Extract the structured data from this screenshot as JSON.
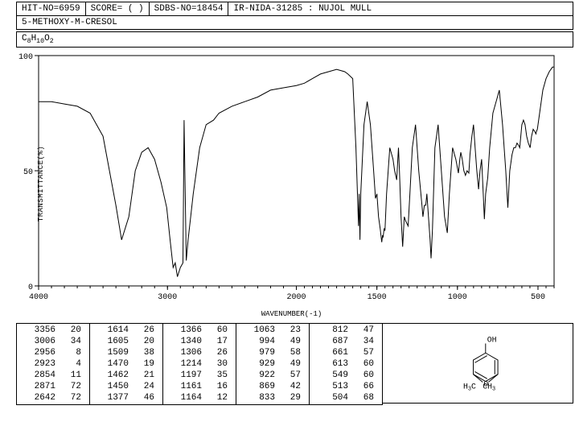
{
  "header": {
    "hit_no": "HIT-NO=6959",
    "score": "SCORE=  (  )",
    "sdbs": "SDBS-NO=18454",
    "ir": "IR-NIDA-31285 : NUJOL MULL"
  },
  "compound": "5-METHOXY-M-CRESOL",
  "formula": {
    "c": "8",
    "h": "10",
    "o": "2"
  },
  "chart": {
    "type": "line",
    "xlabel": "WAVENUMBER(-1)",
    "ylabel": "TRANSMITTANCE(%)",
    "xlim": [
      4000,
      400
    ],
    "ylim": [
      0,
      100
    ],
    "xticks": [
      4000,
      3000,
      2000,
      1500,
      1000,
      500
    ],
    "yticks": [
      0,
      50,
      100
    ],
    "line_color": "#000000",
    "background_color": "#ffffff",
    "axis_color": "#000000",
    "spectrum": [
      [
        4000,
        80
      ],
      [
        3900,
        80
      ],
      [
        3800,
        79
      ],
      [
        3700,
        78
      ],
      [
        3600,
        75
      ],
      [
        3500,
        65
      ],
      [
        3400,
        35
      ],
      [
        3356,
        20
      ],
      [
        3300,
        30
      ],
      [
        3250,
        50
      ],
      [
        3200,
        58
      ],
      [
        3150,
        60
      ],
      [
        3100,
        55
      ],
      [
        3050,
        45
      ],
      [
        3006,
        34
      ],
      [
        2980,
        20
      ],
      [
        2956,
        8
      ],
      [
        2940,
        10
      ],
      [
        2923,
        4
      ],
      [
        2900,
        8
      ],
      [
        2880,
        10
      ],
      [
        2871,
        72
      ],
      [
        2854,
        11
      ],
      [
        2840,
        20
      ],
      [
        2800,
        40
      ],
      [
        2750,
        60
      ],
      [
        2700,
        70
      ],
      [
        2642,
        72
      ],
      [
        2600,
        75
      ],
      [
        2500,
        78
      ],
      [
        2400,
        80
      ],
      [
        2300,
        82
      ],
      [
        2200,
        85
      ],
      [
        2100,
        86
      ],
      [
        2000,
        87
      ],
      [
        1950,
        88
      ],
      [
        1900,
        90
      ],
      [
        1850,
        92
      ],
      [
        1800,
        93
      ],
      [
        1750,
        94
      ],
      [
        1700,
        93
      ],
      [
        1680,
        92
      ],
      [
        1650,
        90
      ],
      [
        1630,
        60
      ],
      [
        1614,
        26
      ],
      [
        1610,
        40
      ],
      [
        1605,
        20
      ],
      [
        1600,
        40
      ],
      [
        1580,
        70
      ],
      [
        1560,
        80
      ],
      [
        1540,
        70
      ],
      [
        1520,
        50
      ],
      [
        1509,
        38
      ],
      [
        1500,
        40
      ],
      [
        1490,
        30
      ],
      [
        1480,
        25
      ],
      [
        1470,
        19
      ],
      [
        1465,
        22
      ],
      [
        1462,
        21
      ],
      [
        1455,
        25
      ],
      [
        1450,
        24
      ],
      [
        1440,
        40
      ],
      [
        1420,
        60
      ],
      [
        1400,
        55
      ],
      [
        1390,
        50
      ],
      [
        1377,
        46
      ],
      [
        1370,
        55
      ],
      [
        1366,
        60
      ],
      [
        1360,
        50
      ],
      [
        1350,
        30
      ],
      [
        1340,
        17
      ],
      [
        1330,
        30
      ],
      [
        1320,
        28
      ],
      [
        1306,
        26
      ],
      [
        1295,
        40
      ],
      [
        1280,
        60
      ],
      [
        1260,
        70
      ],
      [
        1240,
        50
      ],
      [
        1220,
        35
      ],
      [
        1214,
        30
      ],
      [
        1205,
        35
      ],
      [
        1197,
        35
      ],
      [
        1190,
        40
      ],
      [
        1180,
        30
      ],
      [
        1170,
        20
      ],
      [
        1164,
        12
      ],
      [
        1161,
        16
      ],
      [
        1155,
        25
      ],
      [
        1140,
        60
      ],
      [
        1120,
        70
      ],
      [
        1100,
        50
      ],
      [
        1080,
        30
      ],
      [
        1063,
        23
      ],
      [
        1050,
        40
      ],
      [
        1030,
        60
      ],
      [
        1010,
        55
      ],
      [
        994,
        49
      ],
      [
        985,
        55
      ],
      [
        979,
        58
      ],
      [
        970,
        55
      ],
      [
        960,
        50
      ],
      [
        950,
        48
      ],
      [
        940,
        50
      ],
      [
        929,
        49
      ],
      [
        922,
        57
      ],
      [
        910,
        65
      ],
      [
        900,
        70
      ],
      [
        890,
        60
      ],
      [
        880,
        50
      ],
      [
        869,
        42
      ],
      [
        860,
        50
      ],
      [
        850,
        55
      ],
      [
        840,
        40
      ],
      [
        833,
        29
      ],
      [
        825,
        40
      ],
      [
        812,
        47
      ],
      [
        800,
        60
      ],
      [
        780,
        75
      ],
      [
        760,
        80
      ],
      [
        740,
        85
      ],
      [
        720,
        70
      ],
      [
        700,
        50
      ],
      [
        687,
        34
      ],
      [
        675,
        50
      ],
      [
        661,
        57
      ],
      [
        650,
        60
      ],
      [
        640,
        60
      ],
      [
        630,
        62
      ],
      [
        620,
        61
      ],
      [
        613,
        60
      ],
      [
        600,
        70
      ],
      [
        590,
        72
      ],
      [
        580,
        70
      ],
      [
        570,
        65
      ],
      [
        560,
        62
      ],
      [
        549,
        60
      ],
      [
        540,
        65
      ],
      [
        530,
        68
      ],
      [
        520,
        67
      ],
      [
        513,
        66
      ],
      [
        510,
        67
      ],
      [
        504,
        68
      ],
      [
        490,
        75
      ],
      [
        470,
        85
      ],
      [
        450,
        90
      ],
      [
        430,
        93
      ],
      [
        410,
        95
      ],
      [
        400,
        95
      ]
    ]
  },
  "peak_table": {
    "columns": 5,
    "rows_per_col": 7,
    "data": [
      [
        3356,
        20
      ],
      [
        3006,
        34
      ],
      [
        2956,
        8
      ],
      [
        2923,
        4
      ],
      [
        2854,
        11
      ],
      [
        2871,
        72
      ],
      [
        2642,
        72
      ],
      [
        1614,
        26
      ],
      [
        1605,
        20
      ],
      [
        1509,
        38
      ],
      [
        1470,
        19
      ],
      [
        1462,
        21
      ],
      [
        1450,
        24
      ],
      [
        1377,
        46
      ],
      [
        1366,
        60
      ],
      [
        1340,
        17
      ],
      [
        1306,
        26
      ],
      [
        1214,
        30
      ],
      [
        1197,
        35
      ],
      [
        1161,
        16
      ],
      [
        1164,
        12
      ],
      [
        1063,
        23
      ],
      [
        994,
        49
      ],
      [
        979,
        58
      ],
      [
        929,
        49
      ],
      [
        922,
        57
      ],
      [
        869,
        42
      ],
      [
        833,
        29
      ],
      [
        812,
        47
      ],
      [
        687,
        34
      ],
      [
        661,
        57
      ],
      [
        613,
        60
      ],
      [
        549,
        60
      ],
      [
        513,
        66
      ],
      [
        504,
        68
      ]
    ]
  },
  "structure": {
    "labels": {
      "oh": "OH",
      "och3a": "H",
      "och3b": "C",
      "och3c": "3",
      "ome_o": "O",
      "ch3": "CH",
      "ch3sub": "3"
    },
    "ring_color": "#000000",
    "text_color": "#000000"
  }
}
